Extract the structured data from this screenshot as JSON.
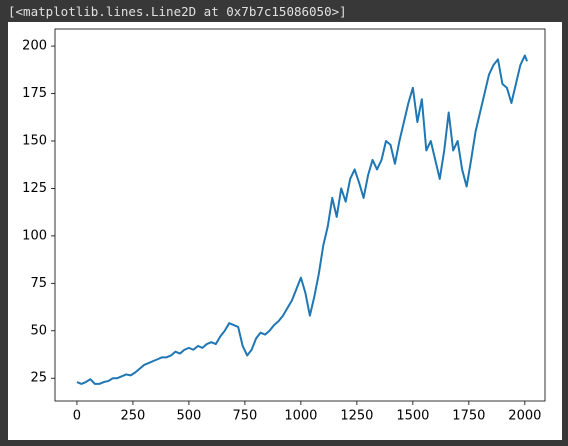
{
  "output_text": "[<matplotlib.lines.Line2D at 0x7b7c15086050>]",
  "chart_data": {
    "type": "line",
    "color": "#1f77b4",
    "xlim": [
      -98,
      2090
    ],
    "ylim": [
      13,
      209
    ],
    "xticks": [
      0,
      250,
      500,
      750,
      1000,
      1250,
      1500,
      1750,
      2000
    ],
    "yticks": [
      25,
      50,
      75,
      100,
      125,
      150,
      175,
      200
    ],
    "grid": false,
    "x": [
      0,
      20,
      40,
      60,
      80,
      100,
      120,
      140,
      160,
      180,
      200,
      220,
      240,
      260,
      280,
      300,
      320,
      340,
      360,
      380,
      400,
      420,
      440,
      460,
      480,
      500,
      520,
      540,
      560,
      580,
      600,
      620,
      640,
      660,
      680,
      700,
      720,
      740,
      760,
      780,
      800,
      820,
      840,
      860,
      880,
      900,
      920,
      940,
      960,
      980,
      1000,
      1020,
      1040,
      1060,
      1080,
      1100,
      1120,
      1140,
      1160,
      1180,
      1200,
      1220,
      1240,
      1260,
      1280,
      1300,
      1320,
      1340,
      1360,
      1380,
      1400,
      1420,
      1440,
      1460,
      1480,
      1500,
      1520,
      1540,
      1560,
      1580,
      1600,
      1620,
      1640,
      1660,
      1680,
      1700,
      1720,
      1740,
      1760,
      1780,
      1800,
      1820,
      1840,
      1860,
      1880,
      1900,
      1920,
      1940,
      1960,
      1980,
      2000,
      2010
    ],
    "values": [
      23,
      22,
      23,
      24.5,
      22,
      22,
      23,
      23.5,
      25,
      25,
      26,
      27,
      26.5,
      28,
      30,
      32,
      33,
      34,
      35,
      36,
      36,
      37,
      39,
      38,
      40,
      41,
      40,
      42,
      41,
      43,
      44,
      43,
      47,
      50,
      54,
      53,
      52,
      42,
      37,
      40,
      46,
      49,
      48,
      50,
      53,
      55,
      58,
      62,
      66,
      72,
      78,
      70,
      58,
      68,
      80,
      95,
      105,
      120,
      110,
      125,
      118,
      130,
      135,
      128,
      120,
      132,
      140,
      135,
      140,
      150,
      148,
      138,
      150,
      160,
      170,
      178,
      160,
      172,
      145,
      150,
      140,
      130,
      145,
      165,
      145,
      150,
      135,
      126,
      140,
      155,
      165,
      175,
      185,
      190,
      193,
      180,
      178,
      170,
      180,
      190,
      195,
      192
    ]
  }
}
